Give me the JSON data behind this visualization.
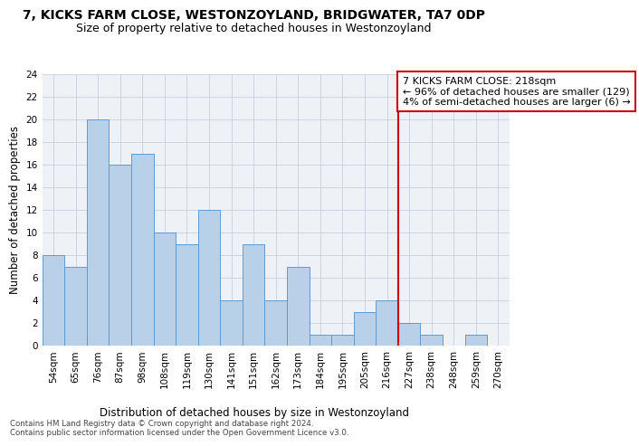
{
  "title": "7, KICKS FARM CLOSE, WESTONZOYLAND, BRIDGWATER, TA7 0DP",
  "subtitle": "Size of property relative to detached houses in Westonzoyland",
  "xlabel": "Distribution of detached houses by size in Westonzoyland",
  "ylabel": "Number of detached properties",
  "bar_color": "#b8d0e8",
  "bar_edge_color": "#5b9bd5",
  "categories": [
    "54sqm",
    "65sqm",
    "76sqm",
    "87sqm",
    "98sqm",
    "108sqm",
    "119sqm",
    "130sqm",
    "141sqm",
    "151sqm",
    "162sqm",
    "173sqm",
    "184sqm",
    "195sqm",
    "205sqm",
    "216sqm",
    "227sqm",
    "238sqm",
    "248sqm",
    "259sqm",
    "270sqm"
  ],
  "values": [
    8,
    7,
    20,
    16,
    17,
    10,
    9,
    12,
    4,
    9,
    4,
    7,
    1,
    1,
    3,
    4,
    2,
    1,
    0,
    1,
    0
  ],
  "ylim": [
    0,
    24
  ],
  "yticks": [
    0,
    2,
    4,
    6,
    8,
    10,
    12,
    14,
    16,
    18,
    20,
    22,
    24
  ],
  "annotation_text": "7 KICKS FARM CLOSE: 218sqm\n← 96% of detached houses are smaller (129)\n4% of semi-detached houses are larger (6) →",
  "annotation_box_color": "#ffffff",
  "annotation_box_edge": "#cc0000",
  "line_color": "#cc0000",
  "footer1": "Contains HM Land Registry data © Crown copyright and database right 2024.",
  "footer2": "Contains public sector information licensed under the Open Government Licence v3.0.",
  "bg_color": "#eef2f7",
  "grid_color": "#c8d0dc",
  "title_fontsize": 10,
  "subtitle_fontsize": 9,
  "axis_label_fontsize": 8.5,
  "tick_fontsize": 7.5,
  "annotation_fontsize": 8
}
